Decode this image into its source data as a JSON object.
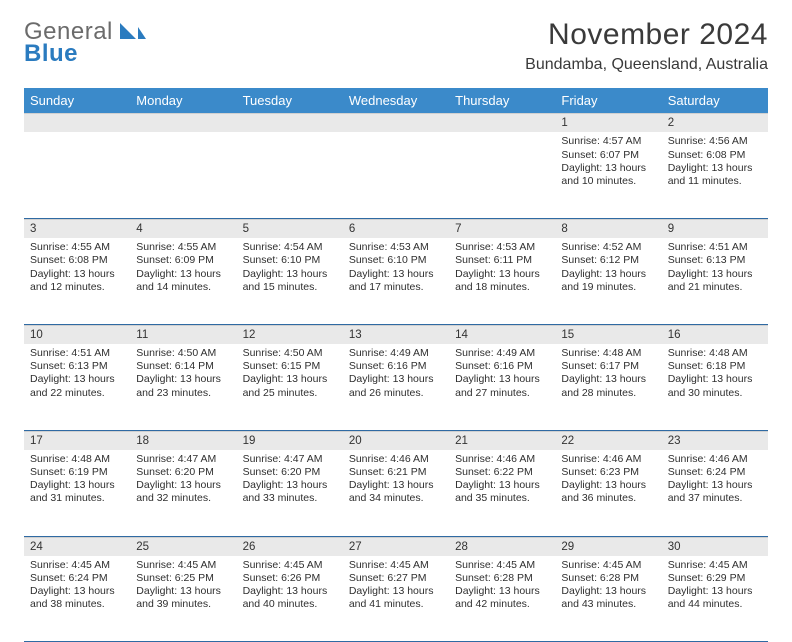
{
  "logo": {
    "line1": "General",
    "line2": "Blue"
  },
  "title": "November 2024",
  "location": "Bundamba, Queensland, Australia",
  "colors": {
    "header_bg": "#3b8aca",
    "header_text": "#ffffff",
    "daynum_bg": "#e9e9e9",
    "row_border": "#2f6aa3",
    "logo_blue": "#2a7bbf",
    "text": "#333333",
    "background": "#ffffff"
  },
  "day_headers": [
    "Sunday",
    "Monday",
    "Tuesday",
    "Wednesday",
    "Thursday",
    "Friday",
    "Saturday"
  ],
  "weeks": [
    [
      {
        "n": "",
        "lines": []
      },
      {
        "n": "",
        "lines": []
      },
      {
        "n": "",
        "lines": []
      },
      {
        "n": "",
        "lines": []
      },
      {
        "n": "",
        "lines": []
      },
      {
        "n": "1",
        "lines": [
          "Sunrise: 4:57 AM",
          "Sunset: 6:07 PM",
          "Daylight: 13 hours and 10 minutes."
        ]
      },
      {
        "n": "2",
        "lines": [
          "Sunrise: 4:56 AM",
          "Sunset: 6:08 PM",
          "Daylight: 13 hours and 11 minutes."
        ]
      }
    ],
    [
      {
        "n": "3",
        "lines": [
          "Sunrise: 4:55 AM",
          "Sunset: 6:08 PM",
          "Daylight: 13 hours and 12 minutes."
        ]
      },
      {
        "n": "4",
        "lines": [
          "Sunrise: 4:55 AM",
          "Sunset: 6:09 PM",
          "Daylight: 13 hours and 14 minutes."
        ]
      },
      {
        "n": "5",
        "lines": [
          "Sunrise: 4:54 AM",
          "Sunset: 6:10 PM",
          "Daylight: 13 hours and 15 minutes."
        ]
      },
      {
        "n": "6",
        "lines": [
          "Sunrise: 4:53 AM",
          "Sunset: 6:10 PM",
          "Daylight: 13 hours and 17 minutes."
        ]
      },
      {
        "n": "7",
        "lines": [
          "Sunrise: 4:53 AM",
          "Sunset: 6:11 PM",
          "Daylight: 13 hours and 18 minutes."
        ]
      },
      {
        "n": "8",
        "lines": [
          "Sunrise: 4:52 AM",
          "Sunset: 6:12 PM",
          "Daylight: 13 hours and 19 minutes."
        ]
      },
      {
        "n": "9",
        "lines": [
          "Sunrise: 4:51 AM",
          "Sunset: 6:13 PM",
          "Daylight: 13 hours and 21 minutes."
        ]
      }
    ],
    [
      {
        "n": "10",
        "lines": [
          "Sunrise: 4:51 AM",
          "Sunset: 6:13 PM",
          "Daylight: 13 hours and 22 minutes."
        ]
      },
      {
        "n": "11",
        "lines": [
          "Sunrise: 4:50 AM",
          "Sunset: 6:14 PM",
          "Daylight: 13 hours and 23 minutes."
        ]
      },
      {
        "n": "12",
        "lines": [
          "Sunrise: 4:50 AM",
          "Sunset: 6:15 PM",
          "Daylight: 13 hours and 25 minutes."
        ]
      },
      {
        "n": "13",
        "lines": [
          "Sunrise: 4:49 AM",
          "Sunset: 6:16 PM",
          "Daylight: 13 hours and 26 minutes."
        ]
      },
      {
        "n": "14",
        "lines": [
          "Sunrise: 4:49 AM",
          "Sunset: 6:16 PM",
          "Daylight: 13 hours and 27 minutes."
        ]
      },
      {
        "n": "15",
        "lines": [
          "Sunrise: 4:48 AM",
          "Sunset: 6:17 PM",
          "Daylight: 13 hours and 28 minutes."
        ]
      },
      {
        "n": "16",
        "lines": [
          "Sunrise: 4:48 AM",
          "Sunset: 6:18 PM",
          "Daylight: 13 hours and 30 minutes."
        ]
      }
    ],
    [
      {
        "n": "17",
        "lines": [
          "Sunrise: 4:48 AM",
          "Sunset: 6:19 PM",
          "Daylight: 13 hours and 31 minutes."
        ]
      },
      {
        "n": "18",
        "lines": [
          "Sunrise: 4:47 AM",
          "Sunset: 6:20 PM",
          "Daylight: 13 hours and 32 minutes."
        ]
      },
      {
        "n": "19",
        "lines": [
          "Sunrise: 4:47 AM",
          "Sunset: 6:20 PM",
          "Daylight: 13 hours and 33 minutes."
        ]
      },
      {
        "n": "20",
        "lines": [
          "Sunrise: 4:46 AM",
          "Sunset: 6:21 PM",
          "Daylight: 13 hours and 34 minutes."
        ]
      },
      {
        "n": "21",
        "lines": [
          "Sunrise: 4:46 AM",
          "Sunset: 6:22 PM",
          "Daylight: 13 hours and 35 minutes."
        ]
      },
      {
        "n": "22",
        "lines": [
          "Sunrise: 4:46 AM",
          "Sunset: 6:23 PM",
          "Daylight: 13 hours and 36 minutes."
        ]
      },
      {
        "n": "23",
        "lines": [
          "Sunrise: 4:46 AM",
          "Sunset: 6:24 PM",
          "Daylight: 13 hours and 37 minutes."
        ]
      }
    ],
    [
      {
        "n": "24",
        "lines": [
          "Sunrise: 4:45 AM",
          "Sunset: 6:24 PM",
          "Daylight: 13 hours and 38 minutes."
        ]
      },
      {
        "n": "25",
        "lines": [
          "Sunrise: 4:45 AM",
          "Sunset: 6:25 PM",
          "Daylight: 13 hours and 39 minutes."
        ]
      },
      {
        "n": "26",
        "lines": [
          "Sunrise: 4:45 AM",
          "Sunset: 6:26 PM",
          "Daylight: 13 hours and 40 minutes."
        ]
      },
      {
        "n": "27",
        "lines": [
          "Sunrise: 4:45 AM",
          "Sunset: 6:27 PM",
          "Daylight: 13 hours and 41 minutes."
        ]
      },
      {
        "n": "28",
        "lines": [
          "Sunrise: 4:45 AM",
          "Sunset: 6:28 PM",
          "Daylight: 13 hours and 42 minutes."
        ]
      },
      {
        "n": "29",
        "lines": [
          "Sunrise: 4:45 AM",
          "Sunset: 6:28 PM",
          "Daylight: 13 hours and 43 minutes."
        ]
      },
      {
        "n": "30",
        "lines": [
          "Sunrise: 4:45 AM",
          "Sunset: 6:29 PM",
          "Daylight: 13 hours and 44 minutes."
        ]
      }
    ]
  ]
}
